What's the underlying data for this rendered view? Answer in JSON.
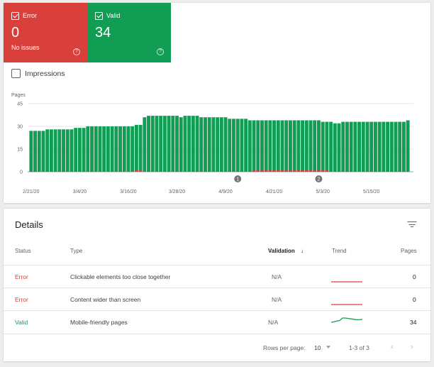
{
  "summary": {
    "error": {
      "label": "Error",
      "value": "0",
      "sub": "No issues",
      "help": "?",
      "color": "#d93f3b",
      "checked": true
    },
    "valid": {
      "label": "Valid",
      "value": "34",
      "help": "?",
      "color": "#119e54",
      "checked": true
    }
  },
  "impressions": {
    "label": "Impressions",
    "checked": false
  },
  "chart_data": {
    "type": "bar",
    "ylabel": "Pages",
    "ylim": [
      0,
      45
    ],
    "yticks": [
      "45",
      "30",
      "15",
      "0"
    ],
    "x_tick_labels": [
      "2/21/20",
      "3/4/20",
      "3/16/20",
      "3/28/20",
      "4/9/20",
      "4/21/20",
      "5/3/20",
      "5/15/20"
    ],
    "annotations": [
      "1",
      "2"
    ],
    "series": [
      {
        "name": "Valid",
        "color": "#119e54",
        "values": [
          27,
          27,
          27,
          27,
          28,
          28,
          28,
          28,
          28,
          28,
          28,
          29,
          29,
          29,
          30,
          30,
          30,
          30,
          30,
          30,
          30,
          30,
          30,
          30,
          30,
          30,
          31,
          31,
          36,
          37,
          37,
          37,
          37,
          37,
          37,
          37,
          37,
          36,
          37,
          37,
          37,
          37,
          36,
          36,
          36,
          36,
          36,
          36,
          36,
          35,
          35,
          35,
          35,
          35,
          34,
          34,
          34,
          34,
          34,
          34,
          34,
          34,
          34,
          34,
          34,
          34,
          34,
          34,
          34,
          34,
          34,
          34,
          33,
          33,
          33,
          32,
          32,
          33,
          33,
          33,
          33,
          33,
          33,
          33,
          33,
          33,
          33,
          33,
          33,
          33,
          33,
          33,
          33,
          34
        ]
      },
      {
        "name": "Error",
        "color": "#d93f3b",
        "values": [
          0,
          0,
          0,
          0,
          0,
          0,
          0,
          0,
          0,
          0,
          0,
          0,
          0,
          0,
          0,
          0,
          0,
          0,
          0,
          0,
          0,
          0,
          0,
          0,
          0,
          0,
          1,
          1,
          0,
          0,
          0,
          0,
          0,
          0,
          0,
          0,
          0,
          0,
          0,
          0,
          0,
          0,
          0,
          0,
          0,
          0,
          0,
          0,
          0,
          0,
          0,
          0,
          0,
          0,
          0,
          1,
          1,
          1,
          1,
          1,
          1,
          1,
          1,
          1,
          1,
          1,
          1,
          1,
          1,
          1,
          1,
          1,
          1,
          1,
          0,
          0,
          0,
          0,
          0,
          0,
          0,
          0,
          0,
          0,
          0,
          0,
          0,
          0,
          0,
          0,
          0,
          0,
          0,
          0
        ]
      }
    ],
    "annotation_index": [
      51,
      71
    ],
    "grid": true
  },
  "details": {
    "title": "Details",
    "columns": {
      "status": "Status",
      "type": "Type",
      "validation": "Validation",
      "sort_arrow": "↓",
      "trend": "Trend",
      "pages": "Pages"
    },
    "rows": [
      {
        "status": "Error",
        "type": "Clickable elements too close together",
        "validation": "N/A",
        "trend": [
          0,
          0,
          0,
          0,
          0,
          0,
          0,
          0,
          0,
          0
        ],
        "pages": "0",
        "color": "#d93f3b"
      },
      {
        "status": "Error",
        "type": "Content wider than screen",
        "validation": "N/A",
        "trend": [
          0,
          0,
          0,
          0,
          0,
          0,
          0,
          0,
          0,
          0
        ],
        "pages": "0",
        "color": "#d93f3b"
      },
      {
        "status": "Valid",
        "type": "Mobile-friendly pages",
        "validation": "N/A",
        "trend": [
          27,
          28,
          30,
          31,
          37,
          37,
          36,
          35,
          34,
          33,
          33,
          34
        ],
        "pages": "34",
        "color": "#119e54"
      }
    ],
    "footer": {
      "rows_per_page_label": "Rows per page:",
      "rows_per_page": "10",
      "range": "1-3 of 3",
      "prev": "‹",
      "next": "›"
    }
  }
}
